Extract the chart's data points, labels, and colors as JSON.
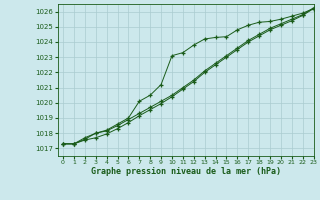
{
  "xlabel": "Graphe pression niveau de la mer (hPa)",
  "background_color": "#cce8ec",
  "grid_color": "#aaccd0",
  "line_color": "#1a5c1a",
  "xlim": [
    -0.5,
    23
  ],
  "ylim": [
    1016.5,
    1026.5
  ],
  "yticks": [
    1017,
    1018,
    1019,
    1020,
    1021,
    1022,
    1023,
    1024,
    1025,
    1026
  ],
  "xticks": [
    0,
    1,
    2,
    3,
    4,
    5,
    6,
    7,
    8,
    9,
    10,
    11,
    12,
    13,
    14,
    15,
    16,
    17,
    18,
    19,
    20,
    21,
    22,
    23
  ],
  "series1": [
    1017.3,
    1017.3,
    1017.7,
    1018.0,
    1018.2,
    1018.6,
    1019.0,
    1020.1,
    1020.5,
    1021.2,
    1023.1,
    1023.3,
    1023.8,
    1024.2,
    1024.3,
    1024.35,
    1024.8,
    1025.1,
    1025.3,
    1025.35,
    1025.5,
    1025.7,
    1025.9,
    1026.2
  ],
  "series2": [
    1017.3,
    1017.3,
    1017.55,
    1017.7,
    1017.95,
    1018.3,
    1018.7,
    1019.15,
    1019.55,
    1019.95,
    1020.4,
    1020.9,
    1021.4,
    1022.0,
    1022.5,
    1023.0,
    1023.5,
    1024.0,
    1024.4,
    1024.8,
    1025.1,
    1025.4,
    1025.75,
    1026.2
  ],
  "series3": [
    1017.3,
    1017.3,
    1017.6,
    1018.0,
    1018.15,
    1018.5,
    1018.9,
    1019.3,
    1019.7,
    1020.1,
    1020.5,
    1021.0,
    1021.5,
    1022.1,
    1022.6,
    1023.1,
    1023.6,
    1024.1,
    1024.5,
    1024.9,
    1025.2,
    1025.5,
    1025.8,
    1026.25
  ]
}
